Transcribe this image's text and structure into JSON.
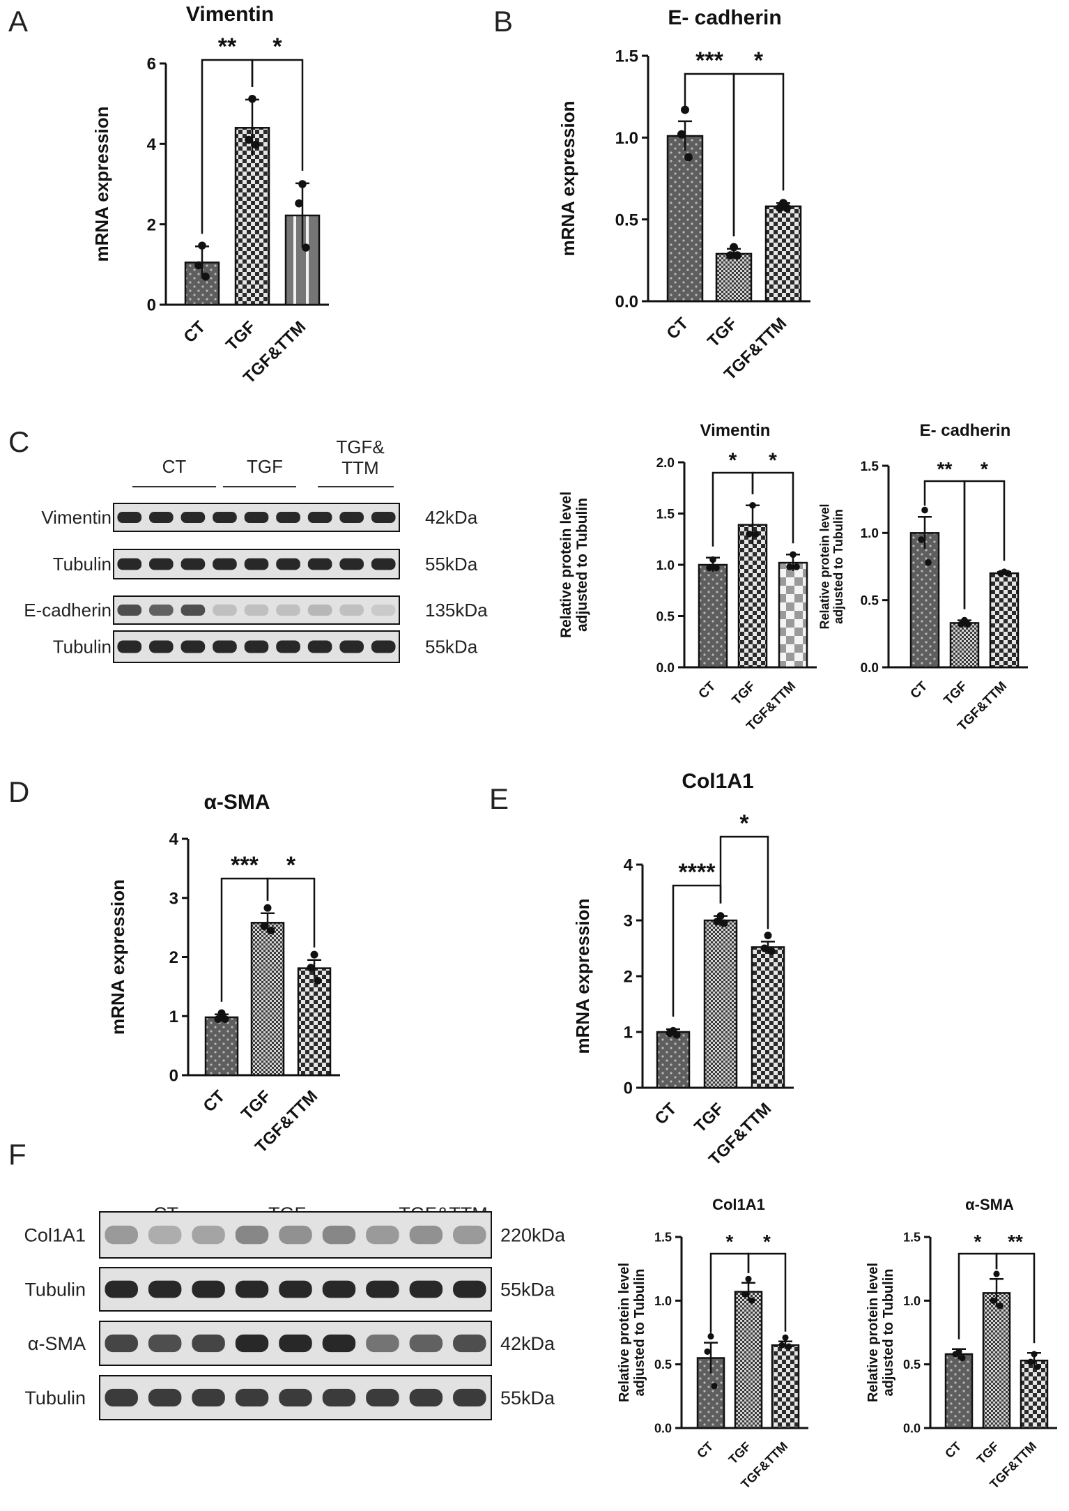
{
  "panel_letters": [
    "A",
    "B",
    "C",
    "D",
    "E",
    "F"
  ],
  "blots": [
    {
      "groups": [
        "CT",
        "TGF",
        "TGF&\nTTM"
      ],
      "rows": [
        {
          "protein": "Vimentin",
          "size": "42kDa"
        },
        {
          "protein": "Tubulin",
          "size": "55kDa"
        },
        {
          "protein": "E-cadherin",
          "size": "135kDa"
        },
        {
          "protein": "Tubulin",
          "size": "55kDa"
        }
      ]
    },
    {
      "groups": [
        "CT",
        "TGF",
        "TGF&TTM"
      ],
      "rows": [
        {
          "protein": "Col1A1",
          "size": "220kDa"
        },
        {
          "protein": "Tubulin",
          "size": "55kDa"
        },
        {
          "protein": "α-SMA",
          "size": "42kDa"
        },
        {
          "protein": "Tubulin",
          "size": "55kDa"
        }
      ]
    }
  ],
  "chart_data": [
    {
      "type": "bar",
      "title": "Vimentin",
      "ylabel": "mRNA expression",
      "categories": [
        "CT",
        "TGF",
        "TGF&TTM"
      ],
      "values": [
        1.05,
        4.4,
        2.22
      ],
      "errors": [
        0.4,
        0.7,
        0.8
      ],
      "points": [
        [
          1.47,
          0.98,
          0.7
        ],
        [
          5.12,
          4.1,
          3.98
        ],
        [
          3.0,
          2.52,
          1.42
        ]
      ],
      "ylim": [
        0,
        6
      ],
      "yticks": [
        "0",
        "2",
        "4",
        "6"
      ],
      "fills": [
        "dots",
        "checker",
        "stripes"
      ],
      "significance": [
        {
          "from": 0,
          "to": 1,
          "label": "**"
        },
        {
          "from": 1,
          "to": 2,
          "label": "*"
        }
      ]
    },
    {
      "type": "bar",
      "title": "E- cadherin",
      "ylabel": "mRNA expression",
      "categories": [
        "CT",
        "TGF",
        "TGF&TTM"
      ],
      "values": [
        1.01,
        0.29,
        0.58
      ],
      "errors": [
        0.09,
        0.03,
        0.02
      ],
      "points": [
        [
          1.17,
          1.02,
          0.88
        ],
        [
          0.33,
          0.28,
          0.28
        ],
        [
          0.6,
          0.57,
          0.57
        ]
      ],
      "ylim": [
        0,
        1.5
      ],
      "yticks": [
        "0.0",
        "0.5",
        "1.0",
        "1.5"
      ],
      "fills": [
        "dots",
        "fine",
        "checker"
      ],
      "significance": [
        {
          "from": 0,
          "to": 1,
          "label": "***"
        },
        {
          "from": 1,
          "to": 2,
          "label": "*"
        }
      ]
    },
    {
      "type": "bar",
      "title": "Vimentin",
      "ylabel": "Relative protein level\nadjusted to Tubulin",
      "categories": [
        "CT",
        "TGF",
        "TGF&TTM"
      ],
      "values": [
        1.0,
        1.39,
        1.02
      ],
      "errors": [
        0.07,
        0.19,
        0.08
      ],
      "points": [
        [
          1.05,
          0.97,
          0.97
        ],
        [
          1.58,
          1.3,
          1.3
        ],
        [
          1.1,
          0.98,
          0.98
        ]
      ],
      "ylim": [
        0,
        2
      ],
      "yticks": [
        "0.0",
        "0.5",
        "1.0",
        "1.5",
        "2.0"
      ],
      "fills": [
        "dots",
        "checker",
        "bigchecker"
      ],
      "significance": [
        {
          "from": 0,
          "to": 1,
          "label": "*"
        },
        {
          "from": 1,
          "to": 2,
          "label": "*"
        }
      ]
    },
    {
      "type": "bar",
      "title": "E- cadherin",
      "ylabel": "Relative protein level\nadjusted to Tubulin",
      "categories": [
        "CT",
        "TGF",
        "TGF&TTM"
      ],
      "values": [
        1.0,
        0.33,
        0.7
      ],
      "errors": [
        0.12,
        0.02,
        0.01
      ],
      "points": [
        [
          1.17,
          0.95,
          0.78
        ],
        [
          0.35,
          0.32,
          0.32
        ],
        [
          0.71,
          0.7,
          0.7
        ]
      ],
      "ylim": [
        0,
        1.5
      ],
      "yticks": [
        "0.0",
        "0.5",
        "1.0",
        "1.5"
      ],
      "fills": [
        "dots",
        "fine",
        "checker"
      ],
      "significance": [
        {
          "from": 0,
          "to": 1,
          "label": "**"
        },
        {
          "from": 1,
          "to": 2,
          "label": "*"
        }
      ]
    },
    {
      "type": "bar",
      "title": "α-SMA",
      "ylabel": "mRNA expression",
      "categories": [
        "CT",
        "TGF",
        "TGF&TTM"
      ],
      "values": [
        0.98,
        2.58,
        1.81
      ],
      "errors": [
        0.05,
        0.16,
        0.14
      ],
      "points": [
        [
          1.05,
          0.95,
          0.95
        ],
        [
          2.83,
          2.52,
          2.45
        ],
        [
          2.04,
          1.82,
          1.6
        ]
      ],
      "ylim": [
        0,
        4
      ],
      "yticks": [
        "0",
        "1",
        "2",
        "3",
        "4"
      ],
      "fills": [
        "dots",
        "fine",
        "checker"
      ],
      "significance": [
        {
          "from": 0,
          "to": 1,
          "label": "***"
        },
        {
          "from": 1,
          "to": 2,
          "label": "*"
        }
      ]
    },
    {
      "type": "bar",
      "title": "Col1A1",
      "ylabel": "mRNA expression",
      "categories": [
        "CT",
        "TGF",
        "TGF&TTM"
      ],
      "values": [
        1.0,
        3.0,
        2.52
      ],
      "errors": [
        0.05,
        0.08,
        0.1
      ],
      "points": [
        [
          1.02,
          0.98,
          0.95
        ],
        [
          3.08,
          2.98,
          2.95
        ],
        [
          2.73,
          2.5,
          2.45
        ]
      ],
      "ylim": [
        0,
        4
      ],
      "yticks": [
        "0",
        "1",
        "2",
        "3",
        "4"
      ],
      "fills": [
        "dots",
        "fine",
        "checker"
      ],
      "significance": [
        {
          "from": 0,
          "to": 1,
          "label": "****"
        },
        {
          "from": 1,
          "to": 2,
          "label": "*"
        }
      ]
    },
    {
      "type": "bar",
      "title": "Col1A1",
      "ylabel": "Relative protein level\nadjusted to Tubulin",
      "categories": [
        "CT",
        "TGF",
        "TGF&TTM"
      ],
      "values": [
        0.55,
        1.07,
        0.65
      ],
      "errors": [
        0.12,
        0.07,
        0.03
      ],
      "points": [
        [
          0.72,
          0.6,
          0.33
        ],
        [
          1.17,
          1.05,
          1.0
        ],
        [
          0.71,
          0.65,
          0.64
        ]
      ],
      "ylim": [
        0,
        1.5
      ],
      "yticks": [
        "0.0",
        "0.5",
        "1.0",
        "1.5"
      ],
      "fills": [
        "dots",
        "fine",
        "checker"
      ],
      "significance": [
        {
          "from": 0,
          "to": 1,
          "label": "*"
        },
        {
          "from": 1,
          "to": 2,
          "label": "*"
        }
      ]
    },
    {
      "type": "bar",
      "title": "α-SMA",
      "ylabel": "Relative protein level\nadjusted to Tubulin",
      "categories": [
        "CT",
        "TGF",
        "TGF&TTM"
      ],
      "values": [
        0.58,
        1.06,
        0.53
      ],
      "errors": [
        0.04,
        0.11,
        0.06
      ],
      "points": [
        [
          0.6,
          0.58,
          0.55
        ],
        [
          1.21,
          1.0,
          0.96
        ],
        [
          0.58,
          0.52,
          0.48
        ]
      ],
      "ylim": [
        0,
        1.5
      ],
      "yticks": [
        "0.0",
        "0.5",
        "1.0",
        "1.5"
      ],
      "fills": [
        "dots",
        "fine",
        "checker"
      ],
      "significance": [
        {
          "from": 0,
          "to": 1,
          "label": "*"
        },
        {
          "from": 1,
          "to": 2,
          "label": "**"
        }
      ]
    }
  ]
}
